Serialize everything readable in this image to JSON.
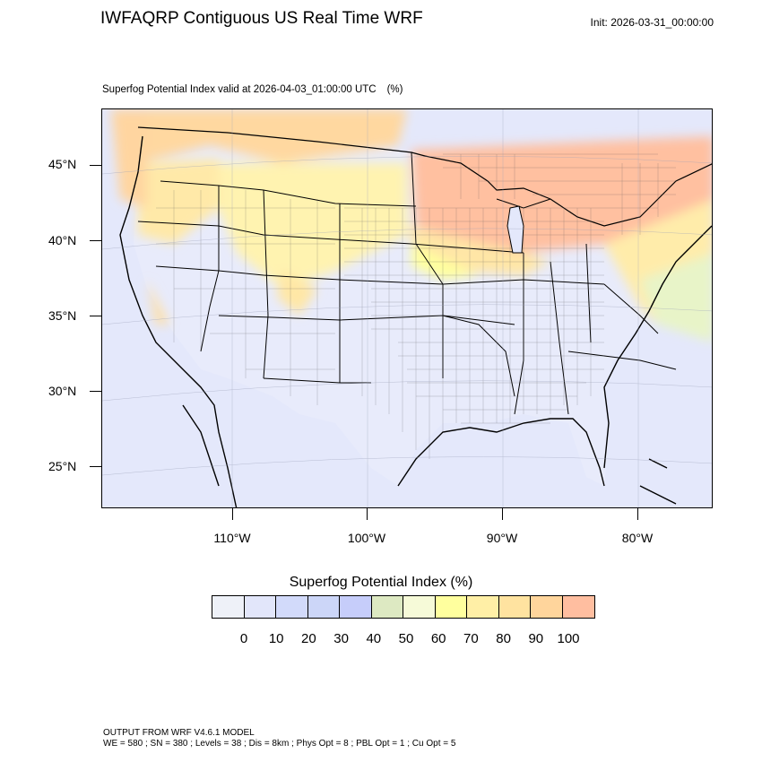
{
  "header": {
    "title": "IWFAQRP Contiguous US Real Time WRF",
    "init": "Init: 2026-03-31_00:00:00"
  },
  "plot": {
    "subtitle": "Superfog Potential Index valid at 2026-04-03_01:00:00 UTC",
    "subtitle_unit": "(%)",
    "lat_labels": [
      "45°N",
      "40°N",
      "35°N",
      "30°N",
      "25°N"
    ],
    "lon_labels": [
      "110°W",
      "100°W",
      "90°W",
      "80°W"
    ]
  },
  "legend": {
    "title": "Superfog Potential Index  (%)",
    "ticks": [
      "0",
      "10",
      "20",
      "30",
      "40",
      "50",
      "60",
      "70",
      "80",
      "90",
      "100"
    ],
    "colors": [
      "#eef1f8",
      "#e2e6fa",
      "#d2dafa",
      "#ccd6f8",
      "#c6cdfa",
      "#dde9c2",
      "#f6fad8",
      "#ffff9e",
      "#ffefa6",
      "#ffe3a0",
      "#ffd59c",
      "#ffbea0"
    ]
  },
  "footer": {
    "line1": "OUTPUT FROM WRF V4.6.1 MODEL",
    "line2": "WE = 580 ; SN = 380 ; Levels = 38 ; Dis = 8km ; Phys Opt = 8 ; PBL Opt = 1 ; Cu Opt = 5"
  }
}
